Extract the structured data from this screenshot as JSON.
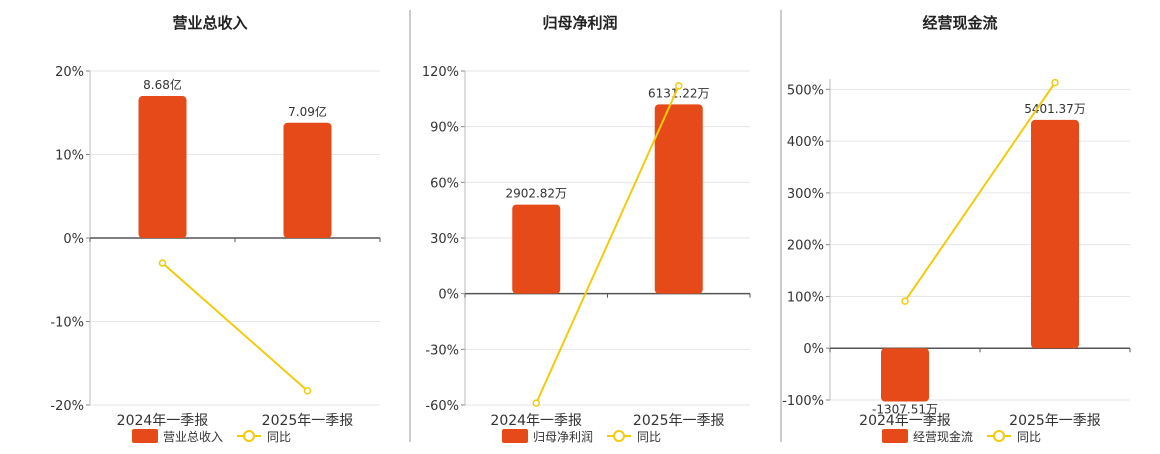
{
  "chart_data": [
    {
      "type": "bar",
      "title": "营业总收入",
      "categories": [
        "2024年一季报",
        "2025年一季报"
      ],
      "y_ticks": [
        "20%",
        "10%",
        "0%",
        "-10%",
        "-20%"
      ],
      "ylim": [
        -20,
        20
      ],
      "series": [
        {
          "name": "营业总收入",
          "type": "bar",
          "values": [
            17,
            13.8
          ],
          "value_labels": [
            "8.68亿",
            "7.09亿"
          ]
        },
        {
          "name": "同比",
          "type": "line",
          "values": [
            -3.0,
            -18.3
          ]
        }
      ],
      "legend": "bottom-center",
      "grid": true,
      "colors": {
        "bar": "#E64A19",
        "line": "#F2CC0C"
      }
    },
    {
      "type": "bar",
      "title": "归母净利润",
      "categories": [
        "2024年一季报",
        "2025年一季报"
      ],
      "y_ticks": [
        "120%",
        "90%",
        "60%",
        "30%",
        "0%",
        "-30%",
        "-60%"
      ],
      "ylim": [
        -60,
        120
      ],
      "series": [
        {
          "name": "归母净利润",
          "type": "bar",
          "values": [
            48,
            102
          ],
          "value_labels": [
            "2902.82万",
            "6131.22万"
          ]
        },
        {
          "name": "同比",
          "type": "line",
          "values": [
            -59,
            112
          ]
        }
      ],
      "legend": "bottom-center",
      "grid": true,
      "colors": {
        "bar": "#E64A19",
        "line": "#F2CC0C"
      }
    },
    {
      "type": "bar",
      "title": "经营现金流",
      "categories": [
        "2024年一季报",
        "2025年一季报"
      ],
      "y_ticks": [
        "500%",
        "400%",
        "300%",
        "200%",
        "100%",
        "0%",
        "-100%"
      ],
      "ylim": [
        -100,
        520
      ],
      "series": [
        {
          "name": "经营现金流",
          "type": "bar",
          "values": [
            -103,
            441
          ],
          "value_labels": [
            "-1307.51万",
            "5401.37万"
          ]
        },
        {
          "name": "同比",
          "type": "line",
          "values": [
            91,
            513
          ]
        }
      ],
      "legend": "bottom-center",
      "grid": true,
      "colors": {
        "bar": "#E64A19",
        "line": "#F2CC0C"
      }
    }
  ]
}
